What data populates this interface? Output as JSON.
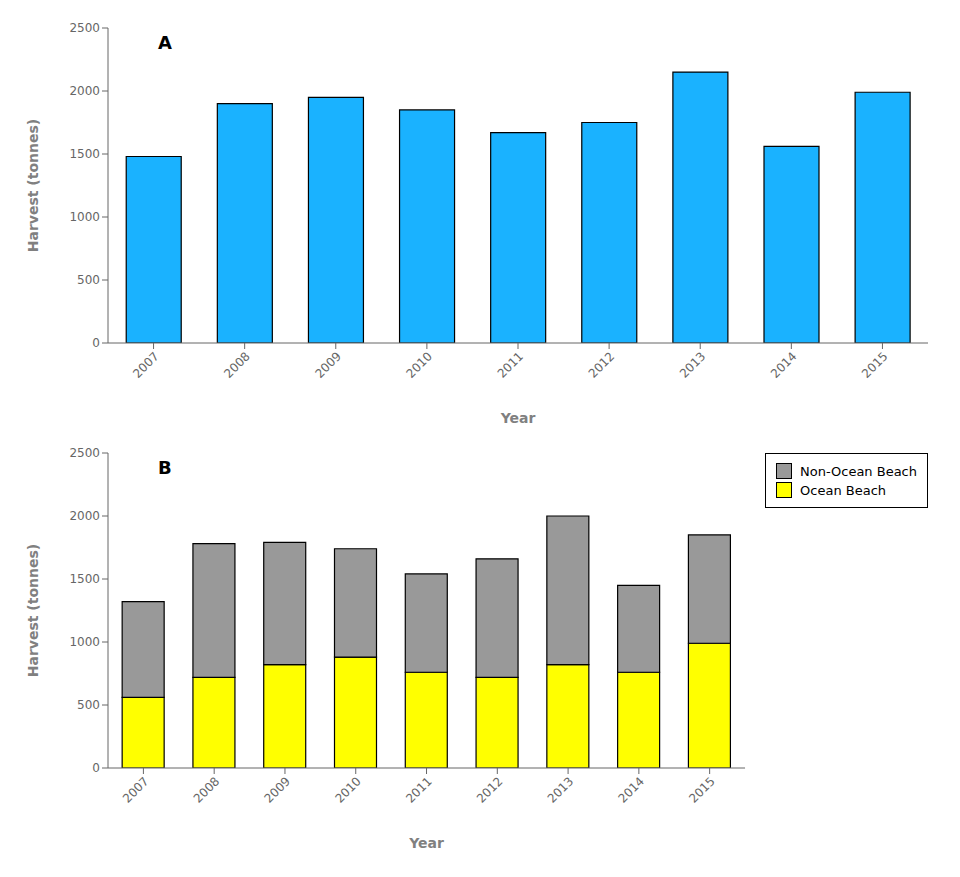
{
  "chart_data": [
    {
      "type": "bar",
      "title": "A",
      "categories": [
        "2007",
        "2008",
        "2009",
        "2010",
        "2011",
        "2012",
        "2013",
        "2014",
        "2015"
      ],
      "values": [
        1480,
        1900,
        1950,
        1850,
        1670,
        1750,
        2150,
        1560,
        1990
      ],
      "color": "#1ab2ff",
      "x_label": "Year",
      "y_label": "Harvest (tonnes)",
      "ylim": [
        0,
        2500
      ],
      "yticks": [
        0,
        500,
        1000,
        1500,
        2000,
        2500
      ],
      "grid": false
    },
    {
      "type": "bar",
      "title": "B",
      "categories": [
        "2007",
        "2008",
        "2009",
        "2010",
        "2011",
        "2012",
        "2013",
        "2014",
        "2015"
      ],
      "series": [
        {
          "name": "Ocean Beach",
          "color": "#ffff00",
          "values": [
            560,
            720,
            820,
            880,
            760,
            720,
            820,
            760,
            990
          ]
        },
        {
          "name": "Non-Ocean Beach",
          "color": "#999999",
          "values": [
            760,
            1060,
            970,
            860,
            780,
            940,
            1180,
            690,
            860
          ]
        }
      ],
      "stacked": true,
      "x_label": "Year",
      "y_label": "Harvest (tonnes)",
      "ylim": [
        0,
        2500
      ],
      "yticks": [
        0,
        500,
        1000,
        1500,
        2000,
        2500
      ],
      "grid": false,
      "legend": "upper right"
    }
  ]
}
